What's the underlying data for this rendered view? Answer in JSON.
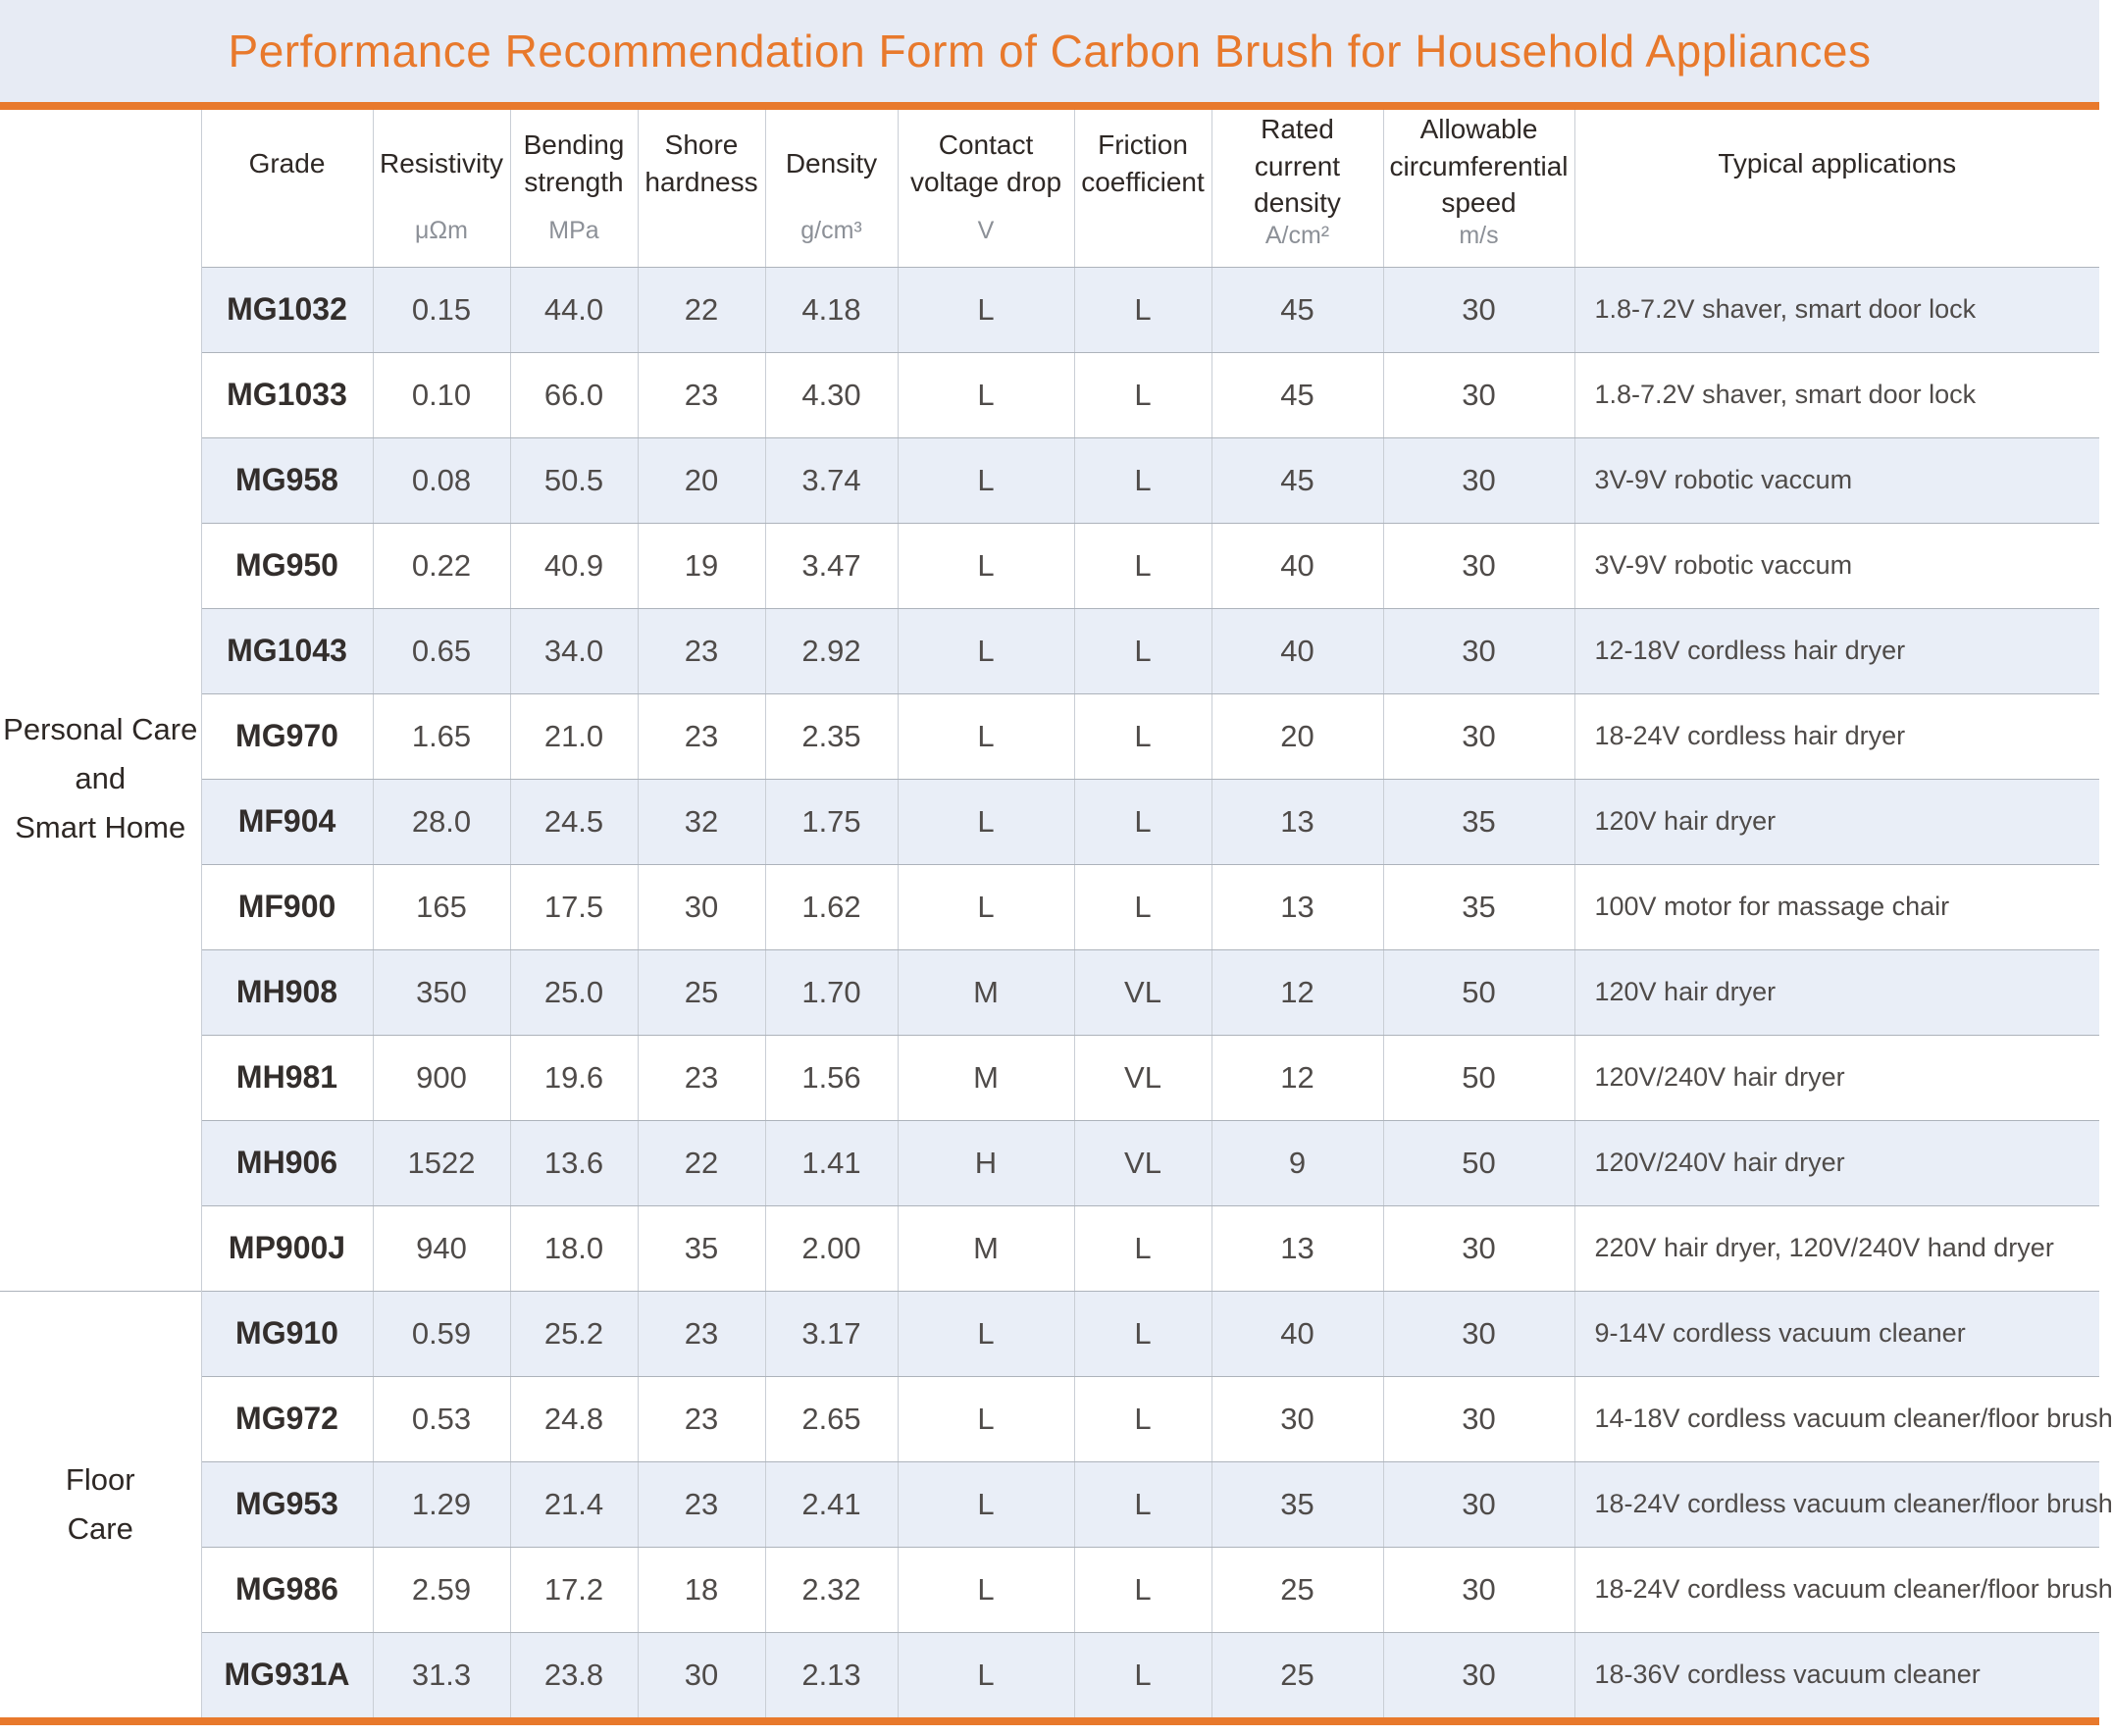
{
  "title": "Performance Recommendation Form of Carbon Brush for Household Appliances",
  "colors": {
    "accent_orange": "#E8792C",
    "title_band_bg": "#E7EBF4",
    "row_stripe_bg": "#E9EEF7",
    "border_grey": "#C9CED5"
  },
  "columns": [
    {
      "label": "Grade",
      "unit": ""
    },
    {
      "label": "Resistivity",
      "unit": "μΩm"
    },
    {
      "label": "Bending strength",
      "unit": "MPa"
    },
    {
      "label": "Shore hardness",
      "unit": ""
    },
    {
      "label": "Density",
      "unit": "g/cm³"
    },
    {
      "label": "Contact voltage drop",
      "unit": "V"
    },
    {
      "label": "Friction coefficient",
      "unit": ""
    },
    {
      "label": "Rated current density",
      "unit": "A/cm²"
    },
    {
      "label": "Allowable circumferential speed",
      "unit": "m/s"
    },
    {
      "label": "Typical applications",
      "unit": ""
    }
  ],
  "groups": [
    {
      "label": "Personal Care\nand\nSmart Home",
      "rows": [
        {
          "grade": "MG1032",
          "resistivity": "0.15",
          "bending_strength": "44.0",
          "shore_hardness": "22",
          "density": "4.18",
          "contact_voltage_drop": "L",
          "friction_coefficient": "L",
          "rated_current_density": "45",
          "allowable_speed": "30",
          "typical_applications": "1.8-7.2V shaver, smart door lock"
        },
        {
          "grade": "MG1033",
          "resistivity": "0.10",
          "bending_strength": "66.0",
          "shore_hardness": "23",
          "density": "4.30",
          "contact_voltage_drop": "L",
          "friction_coefficient": "L",
          "rated_current_density": "45",
          "allowable_speed": "30",
          "typical_applications": "1.8-7.2V shaver, smart door lock"
        },
        {
          "grade": "MG958",
          "resistivity": "0.08",
          "bending_strength": "50.5",
          "shore_hardness": "20",
          "density": "3.74",
          "contact_voltage_drop": "L",
          "friction_coefficient": "L",
          "rated_current_density": "45",
          "allowable_speed": "30",
          "typical_applications": "3V-9V robotic vaccum"
        },
        {
          "grade": "MG950",
          "resistivity": "0.22",
          "bending_strength": "40.9",
          "shore_hardness": "19",
          "density": "3.47",
          "contact_voltage_drop": "L",
          "friction_coefficient": "L",
          "rated_current_density": "40",
          "allowable_speed": "30",
          "typical_applications": "3V-9V robotic vaccum"
        },
        {
          "grade": "MG1043",
          "resistivity": "0.65",
          "bending_strength": "34.0",
          "shore_hardness": "23",
          "density": "2.92",
          "contact_voltage_drop": "L",
          "friction_coefficient": "L",
          "rated_current_density": "40",
          "allowable_speed": "30",
          "typical_applications": "12-18V cordless hair dryer"
        },
        {
          "grade": "MG970",
          "resistivity": "1.65",
          "bending_strength": "21.0",
          "shore_hardness": "23",
          "density": "2.35",
          "contact_voltage_drop": "L",
          "friction_coefficient": "L",
          "rated_current_density": "20",
          "allowable_speed": "30",
          "typical_applications": "18-24V cordless hair dryer"
        },
        {
          "grade": "MF904",
          "resistivity": "28.0",
          "bending_strength": "24.5",
          "shore_hardness": "32",
          "density": "1.75",
          "contact_voltage_drop": "L",
          "friction_coefficient": "L",
          "rated_current_density": "13",
          "allowable_speed": "35",
          "typical_applications": "120V hair dryer"
        },
        {
          "grade": "MF900",
          "resistivity": "165",
          "bending_strength": "17.5",
          "shore_hardness": "30",
          "density": "1.62",
          "contact_voltage_drop": "L",
          "friction_coefficient": "L",
          "rated_current_density": "13",
          "allowable_speed": "35",
          "typical_applications": "100V motor for massage chair"
        },
        {
          "grade": "MH908",
          "resistivity": "350",
          "bending_strength": "25.0",
          "shore_hardness": "25",
          "density": "1.70",
          "contact_voltage_drop": "M",
          "friction_coefficient": "VL",
          "rated_current_density": "12",
          "allowable_speed": "50",
          "typical_applications": "120V hair dryer"
        },
        {
          "grade": "MH981",
          "resistivity": "900",
          "bending_strength": "19.6",
          "shore_hardness": "23",
          "density": "1.56",
          "contact_voltage_drop": "M",
          "friction_coefficient": "VL",
          "rated_current_density": "12",
          "allowable_speed": "50",
          "typical_applications": "120V/240V hair dryer"
        },
        {
          "grade": "MH906",
          "resistivity": "1522",
          "bending_strength": "13.6",
          "shore_hardness": "22",
          "density": "1.41",
          "contact_voltage_drop": "H",
          "friction_coefficient": "VL",
          "rated_current_density": "9",
          "allowable_speed": "50",
          "typical_applications": "120V/240V hair dryer"
        },
        {
          "grade": "MP900J",
          "resistivity": "940",
          "bending_strength": "18.0",
          "shore_hardness": "35",
          "density": "2.00",
          "contact_voltage_drop": "M",
          "friction_coefficient": "L",
          "rated_current_density": "13",
          "allowable_speed": "30",
          "typical_applications": "220V hair dryer, 120V/240V hand dryer"
        }
      ]
    },
    {
      "label": "Floor\nCare",
      "rows": [
        {
          "grade": "MG910",
          "resistivity": "0.59",
          "bending_strength": "25.2",
          "shore_hardness": "23",
          "density": "3.17",
          "contact_voltage_drop": "L",
          "friction_coefficient": "L",
          "rated_current_density": "40",
          "allowable_speed": "30",
          "typical_applications": "9-14V cordless vacuum cleaner"
        },
        {
          "grade": "MG972",
          "resistivity": "0.53",
          "bending_strength": "24.8",
          "shore_hardness": "23",
          "density": "2.65",
          "contact_voltage_drop": "L",
          "friction_coefficient": "L",
          "rated_current_density": "30",
          "allowable_speed": "30",
          "typical_applications": "14-18V cordless vacuum cleaner/floor brush"
        },
        {
          "grade": "MG953",
          "resistivity": "1.29",
          "bending_strength": "21.4",
          "shore_hardness": "23",
          "density": "2.41",
          "contact_voltage_drop": "L",
          "friction_coefficient": "L",
          "rated_current_density": "35",
          "allowable_speed": "30",
          "typical_applications": "18-24V cordless vacuum cleaner/floor brush"
        },
        {
          "grade": "MG986",
          "resistivity": "2.59",
          "bending_strength": "17.2",
          "shore_hardness": "18",
          "density": "2.32",
          "contact_voltage_drop": "L",
          "friction_coefficient": "L",
          "rated_current_density": "25",
          "allowable_speed": "30",
          "typical_applications": "18-24V cordless vacuum cleaner/floor brush"
        },
        {
          "grade": "MG931A",
          "resistivity": "31.3",
          "bending_strength": "23.8",
          "shore_hardness": "30",
          "density": "2.13",
          "contact_voltage_drop": "L",
          "friction_coefficient": "L",
          "rated_current_density": "25",
          "allowable_speed": "30",
          "typical_applications": "18-36V cordless vacuum cleaner"
        }
      ]
    }
  ]
}
